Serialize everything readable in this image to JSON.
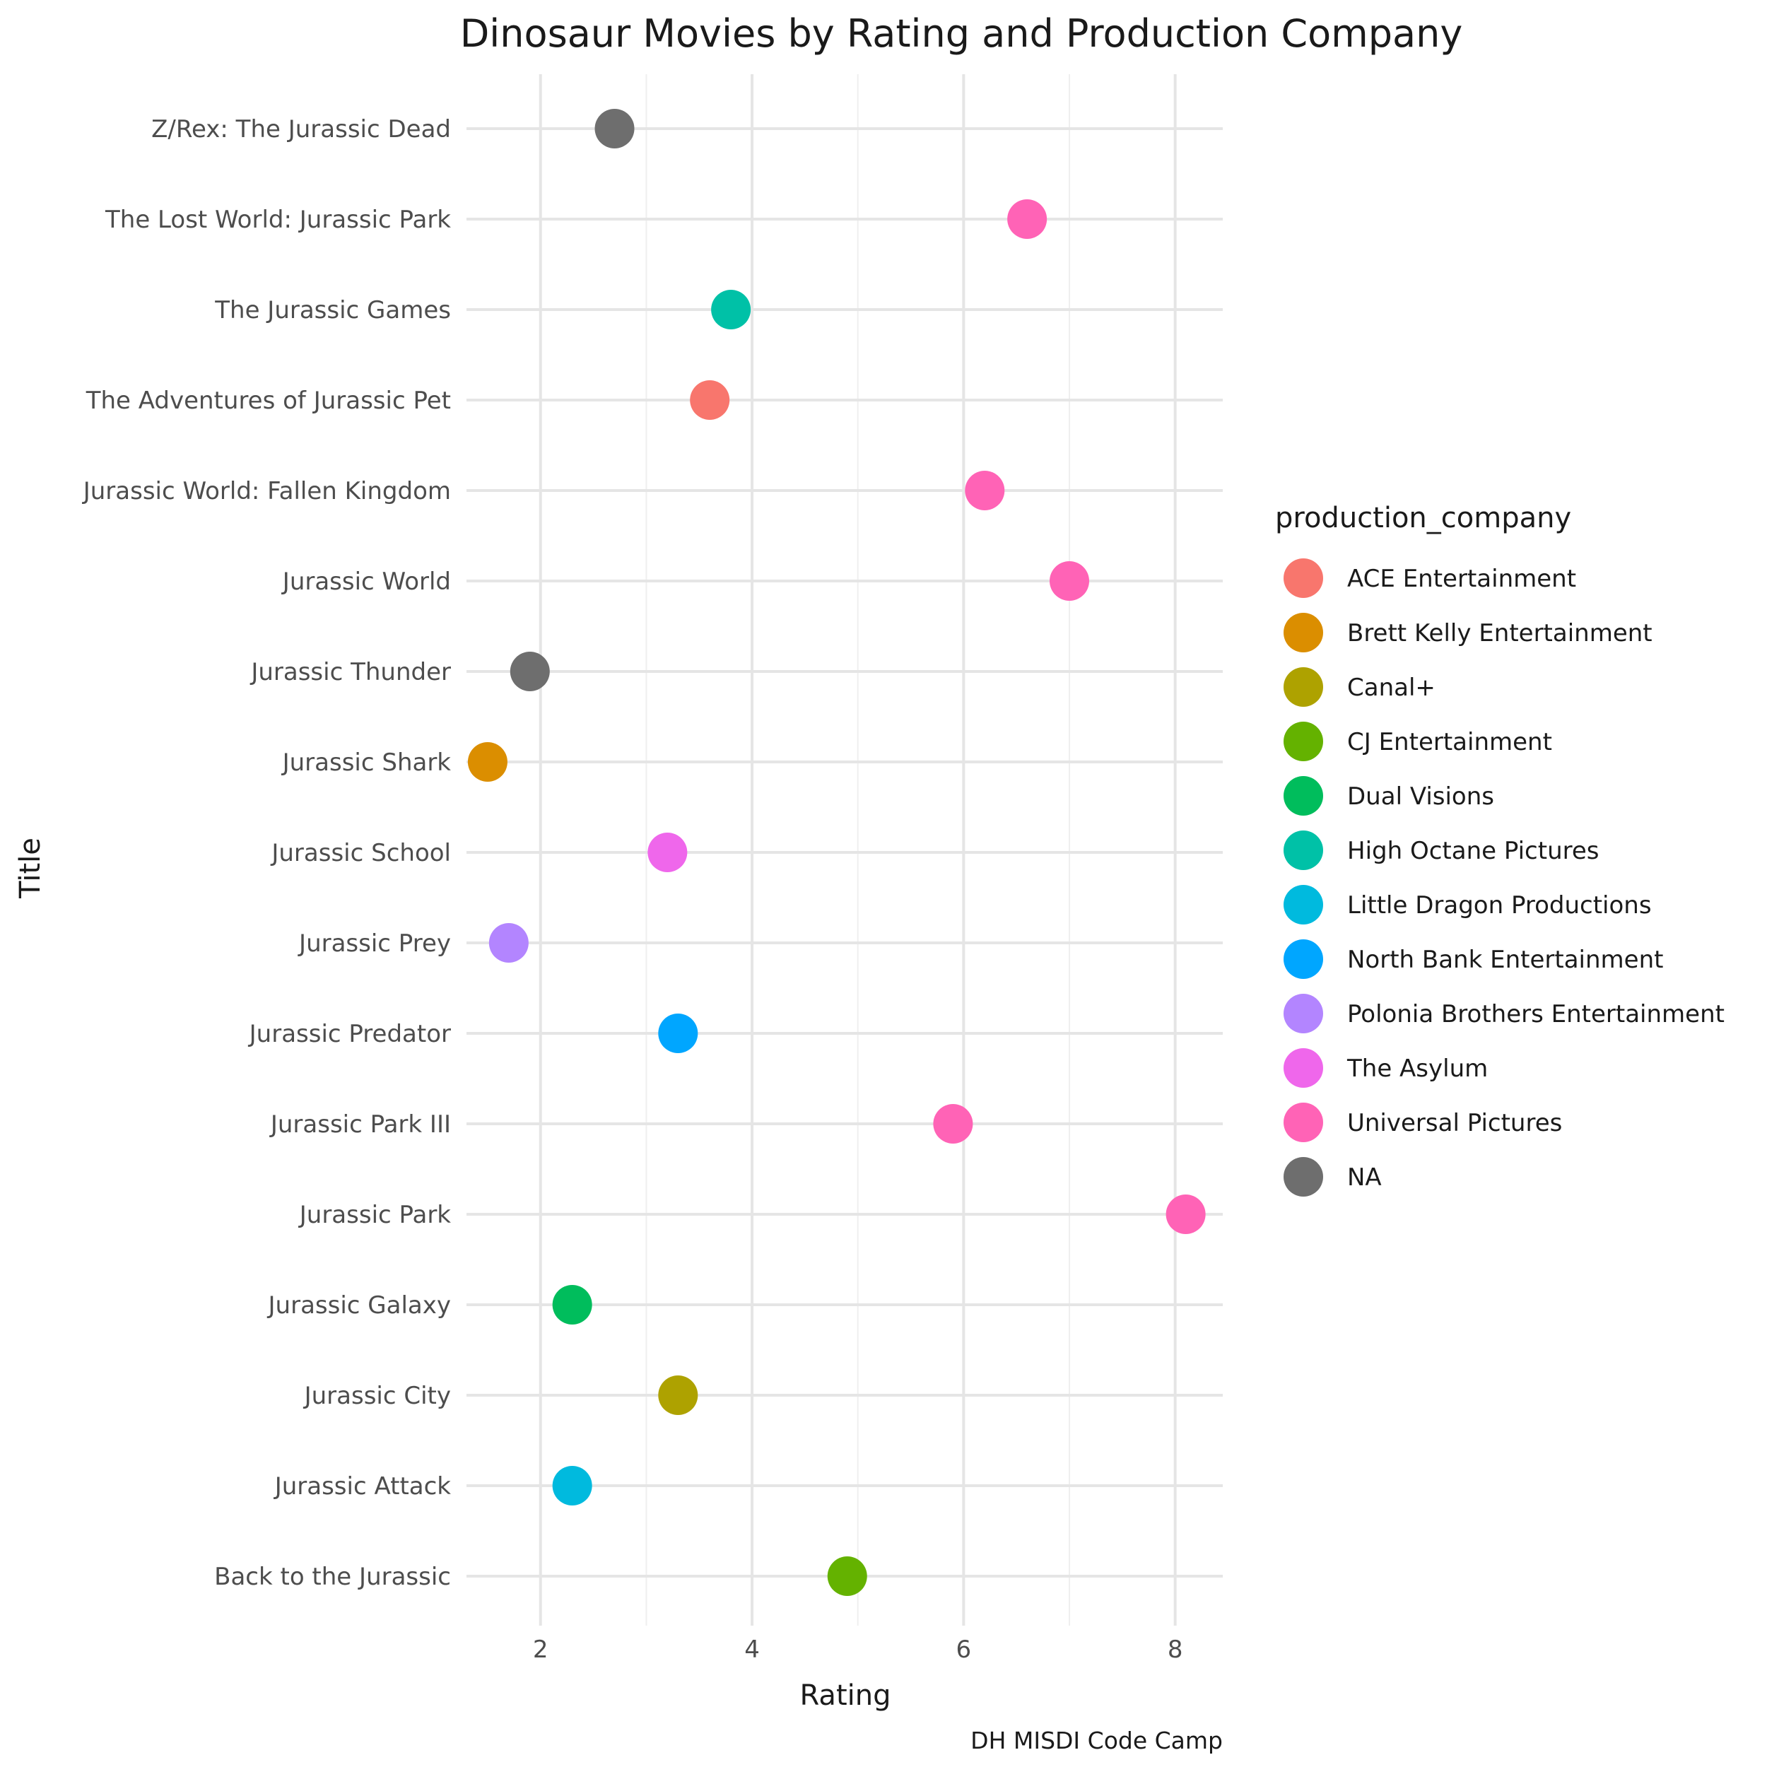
{
  "chart_data": {
    "type": "scatter",
    "title": "Dinosaur Movies by Rating and Production Company",
    "xlabel": "Rating",
    "ylabel": "Title",
    "caption": "DH MISDI Code Camp",
    "xlim": [
      1.3,
      8.45
    ],
    "x_ticks": [
      2,
      4,
      6,
      8
    ],
    "x_tick_labels": [
      "2",
      "4",
      "6",
      "8"
    ],
    "grid": true,
    "legend_position": "right",
    "legend_title": "production_company",
    "categories": [
      "Back to the Jurassic",
      "Jurassic Attack",
      "Jurassic City",
      "Jurassic Galaxy",
      "Jurassic Park",
      "Jurassic Park III",
      "Jurassic Predator",
      "Jurassic Prey",
      "Jurassic School",
      "Jurassic Shark",
      "Jurassic Thunder",
      "Jurassic World",
      "Jurassic World: Fallen Kingdom",
      "The Adventures of Jurassic Pet",
      "The Jurassic Games",
      "The Lost World: Jurassic Park",
      "Z/Rex: The Jurassic Dead"
    ],
    "legend": [
      {
        "name": "ACE Entertainment",
        "color": "#F8766D"
      },
      {
        "name": "Brett Kelly Entertainment",
        "color": "#DB8E00"
      },
      {
        "name": "Canal+",
        "color": "#AEA200"
      },
      {
        "name": "CJ Entertainment",
        "color": "#64B200"
      },
      {
        "name": "Dual Visions",
        "color": "#00BD5C"
      },
      {
        "name": "High Octane Pictures",
        "color": "#00C1A7"
      },
      {
        "name": "Little Dragon Productions",
        "color": "#00BADE"
      },
      {
        "name": "North Bank Entertainment",
        "color": "#00A6FF"
      },
      {
        "name": "Polonia Brothers Entertainment",
        "color": "#B385FF"
      },
      {
        "name": "The Asylum",
        "color": "#EF67EB"
      },
      {
        "name": "Universal Pictures",
        "color": "#FF63B6"
      },
      {
        "name": "NA",
        "color": "#6E6E6E"
      }
    ],
    "points": [
      {
        "title": "Back to the Jurassic",
        "rating": 4.9,
        "company": "CJ Entertainment"
      },
      {
        "title": "Jurassic Attack",
        "rating": 2.3,
        "company": "Little Dragon Productions"
      },
      {
        "title": "Jurassic City",
        "rating": 3.3,
        "company": "Canal+"
      },
      {
        "title": "Jurassic Galaxy",
        "rating": 2.3,
        "company": "Dual Visions"
      },
      {
        "title": "Jurassic Park",
        "rating": 8.1,
        "company": "Universal Pictures"
      },
      {
        "title": "Jurassic Park III",
        "rating": 5.9,
        "company": "Universal Pictures"
      },
      {
        "title": "Jurassic Predator",
        "rating": 3.3,
        "company": "North Bank Entertainment"
      },
      {
        "title": "Jurassic Prey",
        "rating": 1.7,
        "company": "Polonia Brothers Entertainment"
      },
      {
        "title": "Jurassic School",
        "rating": 3.2,
        "company": "The Asylum"
      },
      {
        "title": "Jurassic Shark",
        "rating": 1.5,
        "company": "Brett Kelly Entertainment"
      },
      {
        "title": "Jurassic Thunder",
        "rating": 1.9,
        "company": "NA"
      },
      {
        "title": "Jurassic World",
        "rating": 7.0,
        "company": "Universal Pictures"
      },
      {
        "title": "Jurassic World: Fallen Kingdom",
        "rating": 6.2,
        "company": "Universal Pictures"
      },
      {
        "title": "The Adventures of Jurassic Pet",
        "rating": 3.6,
        "company": "ACE Entertainment"
      },
      {
        "title": "The Jurassic Games",
        "rating": 3.8,
        "company": "High Octane Pictures"
      },
      {
        "title": "The Lost World: Jurassic Park",
        "rating": 6.6,
        "company": "Universal Pictures"
      },
      {
        "title": "Z/Rex: The Jurassic Dead",
        "rating": 2.7,
        "company": "NA"
      }
    ]
  }
}
